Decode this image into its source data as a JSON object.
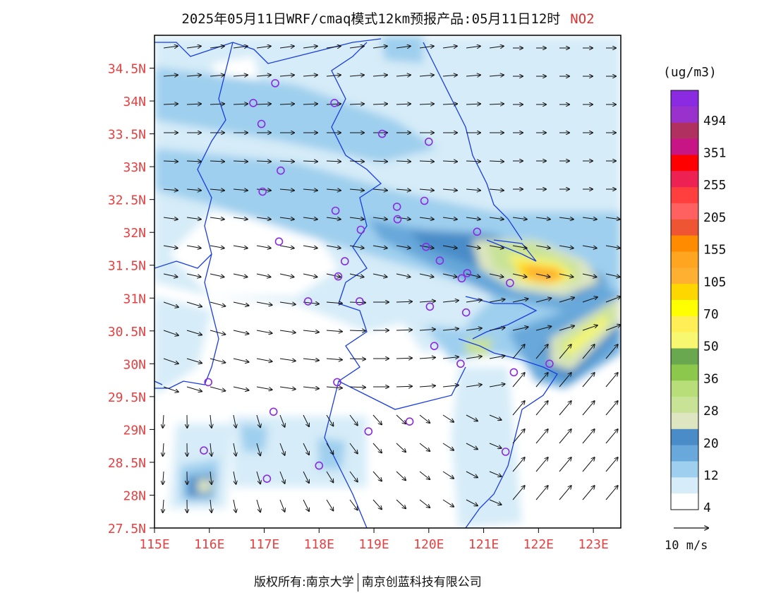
{
  "title": {
    "main": "2025年05月11日WRF/cmaq模式12km预报产品:05月11日12时",
    "pollutant": "NO2"
  },
  "map": {
    "lat_labels": [
      "34.5N",
      "34N",
      "33.5N",
      "33N",
      "32.5N",
      "32N",
      "31.5N",
      "31N",
      "30.5N",
      "30N",
      "29.5N",
      "29N",
      "28.5N",
      "28N",
      "27.5N"
    ],
    "lat_values": [
      34.5,
      34,
      33.5,
      33,
      32.5,
      32,
      31.5,
      31,
      30.5,
      30,
      29.5,
      29,
      28.5,
      28,
      27.5
    ],
    "lon_labels": [
      "115E",
      "116E",
      "117E",
      "118E",
      "119E",
      "120E",
      "121E",
      "122E",
      "123E"
    ],
    "lon_values": [
      115,
      116,
      117,
      118,
      119,
      120,
      121,
      122,
      123
    ],
    "lon_range": [
      115,
      123.5
    ],
    "lat_range": [
      27.5,
      35.0
    ],
    "label_color": "#e84040",
    "border_color": "#1a3de0",
    "station_color": "#8a2be2",
    "stations": [
      [
        117.2,
        34.27
      ],
      [
        116.8,
        33.97
      ],
      [
        116.95,
        33.65
      ],
      [
        118.28,
        33.97
      ],
      [
        119.15,
        33.5
      ],
      [
        120.0,
        33.38
      ],
      [
        117.3,
        32.94
      ],
      [
        116.97,
        32.62
      ],
      [
        118.3,
        32.33
      ],
      [
        118.76,
        32.04
      ],
      [
        119.42,
        32.39
      ],
      [
        119.43,
        32.2
      ],
      [
        119.92,
        32.48
      ],
      [
        117.27,
        31.86
      ],
      [
        120.88,
        32.01
      ],
      [
        119.95,
        31.78
      ],
      [
        118.47,
        31.56
      ],
      [
        120.2,
        31.57
      ],
      [
        118.35,
        31.33
      ],
      [
        120.6,
        31.3
      ],
      [
        120.7,
        31.38
      ],
      [
        121.48,
        31.23
      ],
      [
        117.8,
        30.95
      ],
      [
        118.74,
        30.95
      ],
      [
        120.02,
        30.87
      ],
      [
        120.68,
        30.78
      ],
      [
        120.1,
        30.27
      ],
      [
        120.58,
        30.0
      ],
      [
        121.55,
        29.87
      ],
      [
        122.2,
        30.0
      ],
      [
        115.98,
        29.72
      ],
      [
        118.33,
        29.72
      ],
      [
        117.17,
        29.27
      ],
      [
        118.9,
        28.97
      ],
      [
        119.65,
        29.12
      ],
      [
        115.9,
        28.68
      ],
      [
        118.0,
        28.45
      ],
      [
        117.05,
        28.25
      ],
      [
        121.4,
        28.66
      ]
    ]
  },
  "legend": {
    "unit": "(ug/m3)",
    "values": [
      "494",
      "351",
      "255",
      "205",
      "155",
      "105",
      "70",
      "50",
      "36",
      "28",
      "20",
      "12",
      "4"
    ],
    "colors": [
      "#8a2be2",
      "#9932cc",
      "#b03060",
      "#c71585",
      "#ff0000",
      "#ee2252",
      "#ff3e3e",
      "#ff6060",
      "#ee5533",
      "#ff8c00",
      "#ffa520",
      "#ffb030",
      "#ffd700",
      "#ffff00",
      "#ffee55",
      "#f8f870",
      "#6aa84f",
      "#8cc84b",
      "#b8de7a",
      "#c8e296",
      "#dde6c0",
      "#4a8cc8",
      "#68a8da",
      "#9ecfee",
      "#d6ecf8",
      "#ffffff"
    ],
    "vector_label": "10 m/s"
  },
  "footer": {
    "left": "版权所有:南京大学",
    "right": "南京创蓝科技有限公司"
  }
}
